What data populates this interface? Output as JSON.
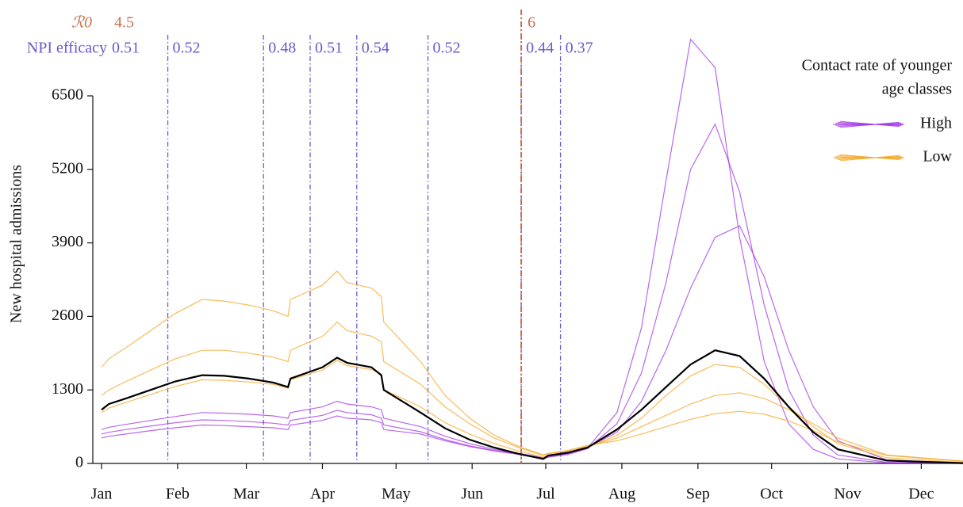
{
  "chart_data": {
    "type": "line",
    "ylabel": "New hospital admissions",
    "xlim": [
      0,
      351
    ],
    "ylim": [
      0,
      6500
    ],
    "yticks": [
      0,
      1300,
      2600,
      3900,
      5200,
      6500
    ],
    "xticks": [
      {
        "value": 0,
        "label": "Jan"
      },
      {
        "value": 31,
        "label": "Feb"
      },
      {
        "value": 59,
        "label": "Mar"
      },
      {
        "value": 90,
        "label": "Apr"
      },
      {
        "value": 120,
        "label": "May"
      },
      {
        "value": 151,
        "label": "Jun"
      },
      {
        "value": 181,
        "label": "Jul"
      },
      {
        "value": 212,
        "label": "Aug"
      },
      {
        "value": 243,
        "label": "Sep"
      },
      {
        "value": 273,
        "label": "Oct"
      },
      {
        "value": 304,
        "label": "Nov"
      },
      {
        "value": 334,
        "label": "Dec"
      }
    ],
    "x": [
      0,
      3,
      10,
      20,
      30,
      41,
      50,
      60,
      70,
      76,
      77,
      90,
      96,
      100,
      110,
      114,
      115,
      130,
      140,
      150,
      160,
      170,
      180,
      182,
      190,
      198,
      210,
      220,
      230,
      240,
      250,
      260,
      270,
      280,
      290,
      300,
      320,
      351
    ],
    "series": [
      {
        "name": "High",
        "color": "#a335e6",
        "lines": [
          [
            450,
            480,
            520,
            580,
            630,
            680,
            670,
            650,
            630,
            600,
            680,
            760,
            840,
            800,
            770,
            720,
            600,
            520,
            400,
            300,
            220,
            160,
            80,
            110,
            160,
            260,
            700,
            1600,
            3200,
            5200,
            6000,
            4800,
            2800,
            1300,
            500,
            150,
            20,
            2
          ],
          [
            600,
            640,
            690,
            760,
            830,
            900,
            890,
            870,
            840,
            800,
            900,
            1000,
            1100,
            1050,
            1000,
            950,
            800,
            650,
            480,
            350,
            250,
            180,
            100,
            130,
            180,
            280,
            550,
            1100,
            2000,
            3100,
            4000,
            4200,
            3300,
            2000,
            1000,
            400,
            60,
            5
          ],
          [
            520,
            550,
            600,
            660,
            720,
            770,
            760,
            740,
            710,
            680,
            760,
            850,
            940,
            900,
            860,
            800,
            680,
            560,
            420,
            310,
            230,
            170,
            90,
            120,
            170,
            270,
            900,
            2400,
            5000,
            7500,
            7000,
            4000,
            1800,
            700,
            250,
            80,
            10,
            1
          ]
        ]
      },
      {
        "name": "Low",
        "color": "#f5a623",
        "lines": [
          [
            1200,
            1300,
            1450,
            1650,
            1850,
            2000,
            2000,
            1950,
            1880,
            1800,
            2000,
            2250,
            2500,
            2350,
            2250,
            2150,
            1800,
            1400,
            1000,
            700,
            450,
            280,
            140,
            170,
            220,
            300,
            450,
            650,
            850,
            1050,
            1200,
            1250,
            1150,
            950,
            700,
            450,
            150,
            40
          ],
          [
            1700,
            1850,
            2050,
            2350,
            2650,
            2900,
            2870,
            2800,
            2700,
            2600,
            2900,
            3150,
            3400,
            3200,
            3100,
            2950,
            2500,
            1800,
            1200,
            800,
            500,
            300,
            150,
            180,
            230,
            320,
            400,
            520,
            650,
            780,
            880,
            920,
            870,
            750,
            580,
            380,
            140,
            40
          ],
          [
            900,
            980,
            1080,
            1220,
            1360,
            1480,
            1470,
            1440,
            1400,
            1330,
            1480,
            1650,
            1820,
            1730,
            1660,
            1580,
            1300,
            1000,
            720,
            520,
            350,
            220,
            110,
            140,
            190,
            280,
            500,
            800,
            1200,
            1550,
            1750,
            1700,
            1400,
            1000,
            650,
            350,
            100,
            20
          ]
        ]
      }
    ],
    "median": {
      "color": "#000000",
      "values": [
        950,
        1050,
        1150,
        1300,
        1450,
        1560,
        1550,
        1500,
        1430,
        1350,
        1500,
        1700,
        1870,
        1780,
        1700,
        1560,
        1300,
        900,
        620,
        420,
        280,
        170,
        80,
        140,
        190,
        280,
        600,
        950,
        1350,
        1750,
        2000,
        1900,
        1500,
        1000,
        550,
        250,
        50,
        5
      ]
    },
    "npi_label": "NPI efficacy",
    "npi_color": "#6a5acd",
    "npi_changes": [
      {
        "x": 0,
        "value": 0.51
      },
      {
        "x": 27,
        "value": 0.52
      },
      {
        "x": 66,
        "value": 0.48
      },
      {
        "x": 85,
        "value": 0.51
      },
      {
        "x": 104,
        "value": 0.54
      },
      {
        "x": 133,
        "value": 0.52
      },
      {
        "x": 171,
        "value": 0.44
      },
      {
        "x": 187,
        "value": 0.37
      }
    ],
    "r0_label": "ℛ0",
    "r0_color": "#c8704e",
    "r0_changes": [
      {
        "x": 0,
        "value": 4.5
      },
      {
        "x": 171,
        "value": 6
      }
    ],
    "legend": {
      "title": [
        "Contact rate of younger",
        "age classes"
      ],
      "position": "upper right"
    }
  }
}
